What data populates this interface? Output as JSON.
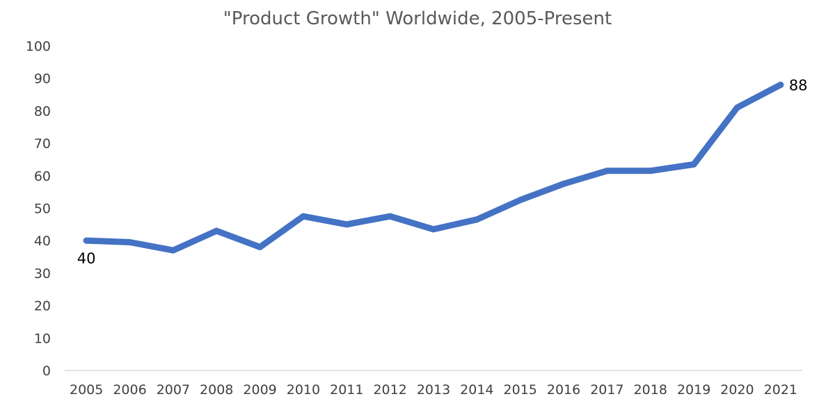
{
  "chart_data": {
    "type": "line",
    "title": "",
    "subtitle": "\"Product Growth\" Worldwide, 2005-Present",
    "xlabel": "",
    "ylabel": "",
    "ylim": [
      0,
      100
    ],
    "yticks": [
      0,
      10,
      20,
      30,
      40,
      50,
      60,
      70,
      80,
      90,
      100
    ],
    "grid": false,
    "legend": "none",
    "categories": [
      "2005",
      "2006",
      "2007",
      "2008",
      "2009",
      "2010",
      "2011",
      "2012",
      "2013",
      "2014",
      "2015",
      "2016",
      "2017",
      "2018",
      "2019",
      "2020",
      "2021"
    ],
    "series": [
      {
        "color": "#4472C4",
        "values": [
          40,
          39.5,
          37,
          43,
          38,
          47.5,
          45,
          47.5,
          43.5,
          46.5,
          52.5,
          57.5,
          61.5,
          61.5,
          63.5,
          81,
          88
        ]
      }
    ],
    "data_labels": [
      {
        "category": "2005",
        "text": "40"
      },
      {
        "category": "2021",
        "text": "88"
      }
    ]
  }
}
